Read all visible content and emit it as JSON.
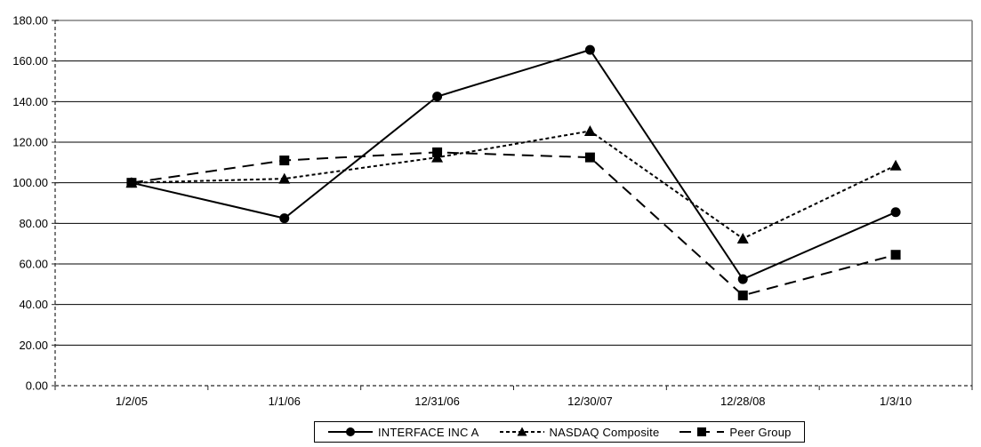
{
  "chart_data": {
    "type": "line",
    "title": "",
    "xlabel": "",
    "ylabel": "",
    "categories": [
      "1/2/05",
      "1/1/06",
      "12/31/06",
      "12/30/07",
      "12/28/08",
      "1/3/10"
    ],
    "series": [
      {
        "name": "INTERFACE INC A",
        "marker": "circle",
        "line": "solid",
        "values": [
          100.0,
          82.5,
          142.5,
          165.5,
          52.5,
          85.5
        ]
      },
      {
        "name": "NASDAQ Composite",
        "marker": "triangle",
        "line": "dash",
        "values": [
          100.0,
          102.0,
          112.5,
          125.5,
          72.5,
          108.5
        ]
      },
      {
        "name": "Peer Group",
        "marker": "square",
        "line": "long-dash",
        "values": [
          100.0,
          111.0,
          115.0,
          112.5,
          44.5,
          64.5
        ]
      }
    ],
    "ylim": [
      0,
      180
    ],
    "ytick_step": 20,
    "ytick_values": [
      0,
      20,
      40,
      60,
      80,
      100,
      120,
      140,
      160,
      180
    ],
    "ytick_labels": [
      "0.00",
      "20.00",
      "40.00",
      "60.00",
      "80.00",
      "100.00",
      "120.00",
      "140.00",
      "160.00",
      "180.00"
    ],
    "grid": "horizontal",
    "legend_position": "bottom-center",
    "colors": {
      "series": "#000000",
      "gridline": "#000000",
      "plot_border": "#808080",
      "axis": "#262626",
      "background": "#ffffff",
      "text": "#000000"
    }
  }
}
